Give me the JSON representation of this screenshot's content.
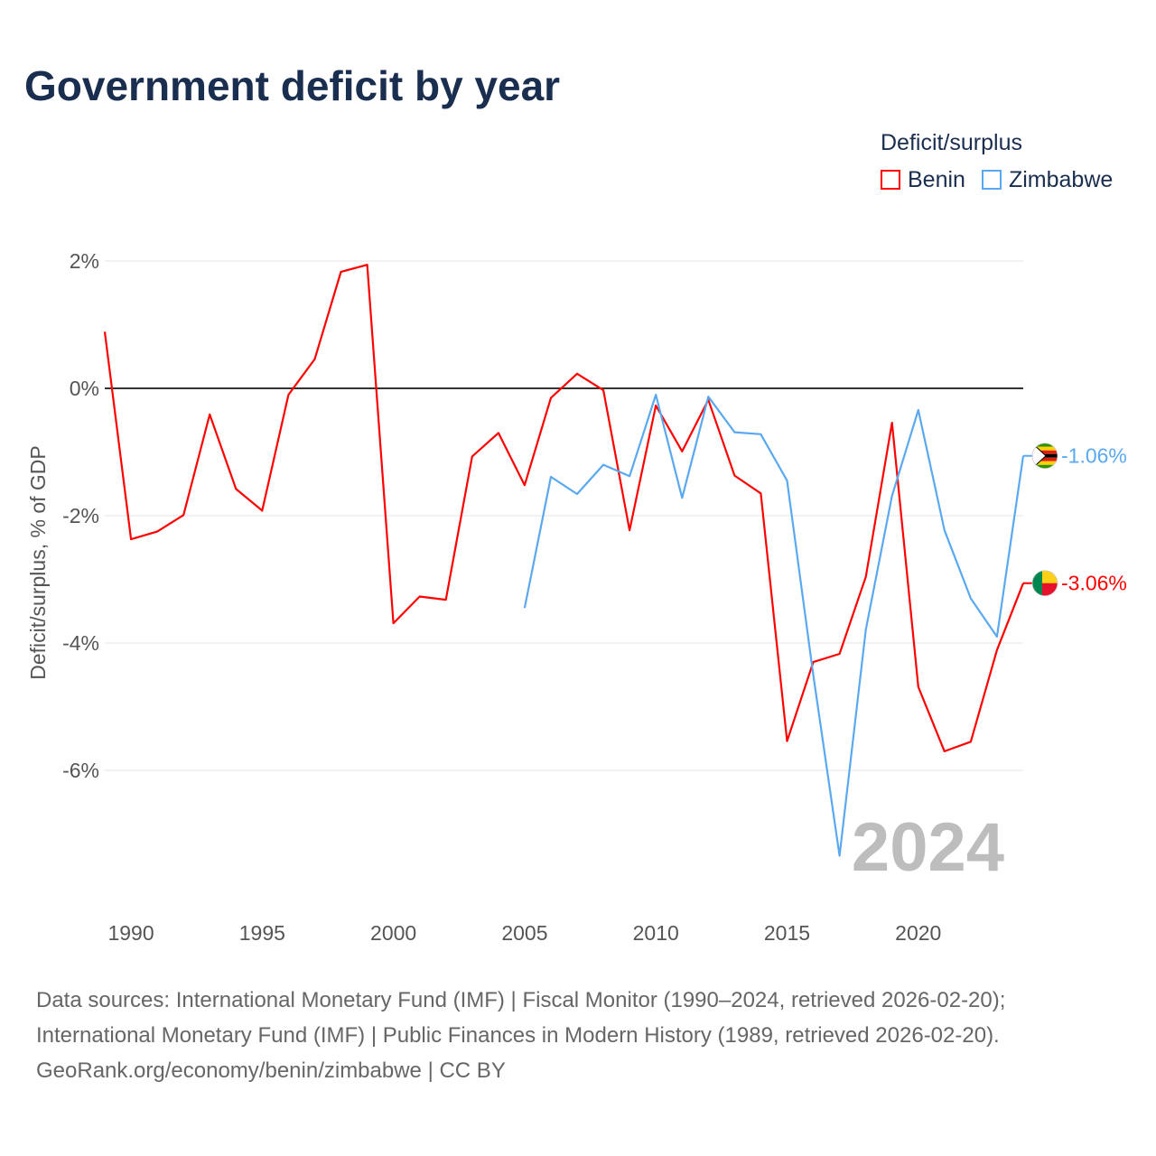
{
  "title": "Government deficit by year",
  "legend": {
    "title": "Deficit/surplus",
    "items": [
      {
        "name": "Benin",
        "color": "#ff0000"
      },
      {
        "name": "Zimbabwe",
        "color": "#5aa9f0"
      }
    ]
  },
  "chart_data": {
    "type": "line",
    "title": "Government deficit by year",
    "ylabel": "Deficit/surplus, % of GDP",
    "xlabel": "",
    "xlim": [
      1989,
      2024
    ],
    "ylim": [
      -8,
      2
    ],
    "x_ticks": [
      1990,
      1995,
      2000,
      2005,
      2010,
      2015,
      2020
    ],
    "y_ticks": [
      {
        "v": 2,
        "label": "2%"
      },
      {
        "v": 0,
        "label": "0%"
      },
      {
        "v": -2,
        "label": "-2%"
      },
      {
        "v": -4,
        "label": "-4%"
      },
      {
        "v": -6,
        "label": "-6%"
      }
    ],
    "grid": true,
    "year_watermark": "2024",
    "series": [
      {
        "name": "Benin",
        "color": "#ff0000",
        "end_label": "-3.06%",
        "flag": "benin",
        "x": [
          1989,
          1990,
          1991,
          1992,
          1993,
          1994,
          1995,
          1996,
          1997,
          1998,
          1999,
          2000,
          2001,
          2002,
          2003,
          2004,
          2005,
          2006,
          2007,
          2008,
          2009,
          2010,
          2011,
          2012,
          2013,
          2014,
          2015,
          2016,
          2017,
          2018,
          2019,
          2020,
          2021,
          2022,
          2023,
          2024
        ],
        "values": [
          0.89,
          -2.37,
          -2.25,
          -1.99,
          -0.41,
          -1.58,
          -1.92,
          -0.1,
          0.46,
          1.83,
          1.94,
          -3.69,
          -3.27,
          -3.32,
          -1.07,
          -0.7,
          -1.52,
          -0.15,
          0.23,
          -0.03,
          -2.23,
          -0.27,
          -0.99,
          -0.18,
          -1.37,
          -1.65,
          -5.54,
          -4.3,
          -4.17,
          -2.96,
          -0.54,
          -4.69,
          -5.7,
          -5.55,
          -4.11,
          -3.06
        ]
      },
      {
        "name": "Zimbabwe",
        "color": "#5aa9f0",
        "end_label": "-1.06%",
        "flag": "zimbabwe",
        "x": [
          2005,
          2006,
          2007,
          2008,
          2009,
          2010,
          2011,
          2012,
          2013,
          2014,
          2015,
          2016,
          2017,
          2018,
          2019,
          2020,
          2021,
          2022,
          2023,
          2024
        ],
        "values": [
          -3.45,
          -1.39,
          -1.66,
          -1.2,
          -1.38,
          -0.1,
          -1.72,
          -0.13,
          -0.69,
          -0.72,
          -1.45,
          -4.5,
          -7.34,
          -3.79,
          -1.69,
          -0.34,
          -2.23,
          -3.3,
          -3.9,
          -1.06
        ]
      }
    ]
  },
  "footer": {
    "line1": "Data sources: International Monetary Fund (IMF) | Fiscal Monitor (1990–2024, retrieved 2026-02-20);",
    "line2": "International Monetary Fund (IMF) | Public Finances in Modern History (1989, retrieved 2026-02-20).",
    "line3": "GeoRank.org/economy/benin/zimbabwe | CC BY"
  }
}
